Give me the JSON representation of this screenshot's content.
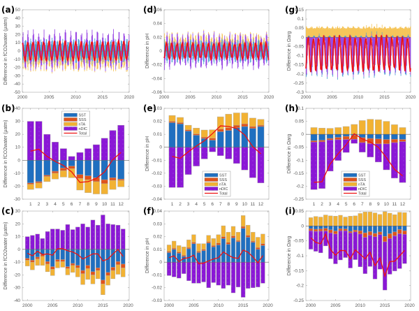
{
  "colors": {
    "SST": "#1f6fc0",
    "SSS": "#e0531a",
    "nTA": "#f2b233",
    "nDIC": "#8a17d6",
    "Total": "#ee1111",
    "SST_ts": "#3a95cf",
    "nTA_ts": "#f5c04a",
    "nDIC_ts": "#8f36e0"
  },
  "legend": [
    "SST",
    "SSS",
    "nTA",
    "nDIC",
    "Total"
  ],
  "chart_data": [
    {
      "id": "a",
      "label": "(a)",
      "type": "area",
      "ylabel": "Difference in fCO2water (μatm)",
      "xlim": [
        2000,
        2020
      ],
      "ylim": [
        -50,
        50
      ],
      "xticks": [
        2000,
        2005,
        2010,
        2015,
        2020
      ],
      "yticks": [
        -50,
        -40,
        -30,
        -20,
        -10,
        0,
        10,
        20,
        30,
        40,
        50
      ],
      "seasonal": {
        "nDIC_amp": 20,
        "SST_amp": -14,
        "nTA_amp": -6,
        "Total_amp": 11,
        "Total_phase_month": 1.5
      }
    },
    {
      "id": "b",
      "label": "(b)",
      "type": "bar",
      "ylabel": "Difference in fCO2water (μatm)",
      "ylim": [
        -30,
        40
      ],
      "categories": [
        "1",
        "2",
        "3",
        "4",
        "5",
        "6",
        "7",
        "8",
        "9",
        "10",
        "11",
        "12"
      ],
      "yticks": [
        -30,
        -20,
        -10,
        0,
        10,
        20,
        30,
        40
      ],
      "legend_position": "top-center",
      "series": [
        {
          "name": "SST",
          "values": [
            -17.5,
            -16.5,
            -11.5,
            -8.5,
            -6,
            -4.5,
            -11,
            -12,
            -13.5,
            -15,
            -13.5,
            -14.5
          ]
        },
        {
          "name": "SSS",
          "values": [
            -1,
            -1,
            -1,
            -1.5,
            -2,
            -2,
            -3,
            -3,
            -3,
            -3,
            -2,
            -1
          ]
        },
        {
          "name": "nTA",
          "values": [
            -4,
            -4,
            -4,
            -4.5,
            -5,
            -7,
            -9,
            -10,
            -9.5,
            -8,
            -7,
            -5
          ]
        },
        {
          "name": "nDIC",
          "values": [
            30,
            30,
            20,
            14,
            9,
            3,
            6,
            9,
            12,
            17,
            23,
            27
          ]
        },
        {
          "name": "Total",
          "values": [
            7,
            8.5,
            3,
            -1,
            -4,
            -9,
            -17,
            -16.5,
            -14,
            -9,
            0.5,
            6
          ]
        }
      ]
    },
    {
      "id": "c",
      "label": "(c)",
      "type": "bar",
      "ylabel": "Difference in fCO2water (μatm)",
      "ylim": [
        -40,
        30
      ],
      "categories": [
        2000,
        2001,
        2002,
        2003,
        2004,
        2005,
        2006,
        2007,
        2008,
        2009,
        2010,
        2011,
        2012,
        2013,
        2014,
        2015,
        2016,
        2017,
        2018,
        2019
      ],
      "xticks": [
        2000,
        2005,
        2010,
        2015,
        2020
      ],
      "yticks": [
        -40,
        -30,
        -20,
        -10,
        0,
        10,
        20,
        30
      ],
      "series": [
        {
          "name": "SST",
          "values": [
            -7,
            -8.5,
            -6,
            -4,
            -9.5,
            -13.5,
            -8,
            -8,
            -13.5,
            -11,
            -12.5,
            -16.5,
            -12.5,
            -17.5,
            -14.5,
            -24,
            -18,
            -14,
            -9.5,
            -11.5
          ]
        },
        {
          "name": "SSS",
          "values": [
            -1.5,
            -1.5,
            -1.5,
            -1.5,
            -2,
            -2,
            -1.5,
            -1.5,
            -1.5,
            -1.5,
            -2,
            -2.5,
            -2.5,
            -2.5,
            -2,
            -3,
            -2.5,
            -2.5,
            -2.5,
            -3
          ]
        },
        {
          "name": "nTA",
          "values": [
            -4.5,
            -6,
            -5,
            -7,
            -6,
            -5,
            -5,
            -4.5,
            -5,
            -5.5,
            -7,
            -8.5,
            -8.5,
            -7,
            -6.5,
            -8.5,
            -7.5,
            -6.5,
            -7.5,
            -7
          ]
        },
        {
          "name": "nDIC",
          "values": [
            10,
            11,
            12,
            8.5,
            14,
            16,
            16,
            15,
            19.5,
            15.5,
            17.5,
            20,
            17.5,
            23,
            19,
            27,
            20,
            19.5,
            19,
            16
          ]
        },
        {
          "name": "Total",
          "values": [
            -3,
            -5,
            -1.5,
            -4,
            -3.5,
            -4.5,
            0.5,
            0.5,
            -1,
            -2,
            -4,
            -7.5,
            -5.5,
            -3.5,
            -3.5,
            -9,
            -7.5,
            -3.5,
            0,
            -5.5
          ]
        }
      ]
    },
    {
      "id": "d",
      "label": "(d)",
      "type": "area",
      "ylabel": "Difference in pH",
      "xlim": [
        2000,
        2020
      ],
      "ylim": [
        -0.06,
        0.06
      ],
      "xticks": [
        2000,
        2005,
        2010,
        2015,
        2020
      ],
      "yticks": [
        -0.06,
        -0.04,
        -0.02,
        0,
        0.02,
        0.04,
        0.06
      ],
      "seasonal": {
        "nDIC_amp": -0.022,
        "SST_amp": 0.016,
        "nTA_amp": 0.006,
        "Total_amp": 0.011,
        "Total_phase_month": 7
      }
    },
    {
      "id": "e",
      "label": "(e)",
      "type": "bar",
      "ylabel": "Difference in pH",
      "ylim": [
        -0.04,
        0.03
      ],
      "categories": [
        "1",
        "2",
        "3",
        "4",
        "5",
        "6",
        "7",
        "8",
        "9",
        "10",
        "11",
        "12"
      ],
      "yticks": [
        -0.04,
        -0.03,
        -0.02,
        -0.01,
        0,
        0.01,
        0.02,
        0.03
      ],
      "legend_position": "bottom-center",
      "series": [
        {
          "name": "SST",
          "values": [
            0.019,
            0.018,
            0.0125,
            0.0093,
            0.0068,
            0.0055,
            0.012,
            0.013,
            0.015,
            0.016,
            0.0145,
            0.016
          ]
        },
        {
          "name": "SSS",
          "values": [
            0.001,
            0.001,
            0.001,
            0.001,
            0.001,
            0.0015,
            0.002,
            0.002,
            0.002,
            0.002,
            0.0015,
            0.001
          ]
        },
        {
          "name": "nTA",
          "values": [
            0.0045,
            0.004,
            0.0035,
            0.0045,
            0.0055,
            0.0065,
            0.0095,
            0.0105,
            0.0095,
            0.0085,
            0.0065,
            0.0045
          ]
        },
        {
          "name": "nDIC",
          "values": [
            -0.031,
            -0.031,
            -0.021,
            -0.0145,
            -0.009,
            -0.0035,
            -0.0065,
            -0.009,
            -0.0125,
            -0.0175,
            -0.0235,
            -0.0275
          ]
        },
        {
          "name": "Total",
          "values": [
            -0.007,
            -0.0085,
            -0.0035,
            0.001,
            0.005,
            0.0105,
            0.0165,
            0.016,
            0.0145,
            0.0095,
            0.0005,
            -0.005
          ]
        }
      ]
    },
    {
      "id": "f",
      "label": "(f)",
      "type": "bar",
      "ylabel": "Difference in pH",
      "ylim": [
        -0.03,
        0.04
      ],
      "categories": [
        2000,
        2001,
        2002,
        2003,
        2004,
        2005,
        2006,
        2007,
        2008,
        2009,
        2010,
        2011,
        2012,
        2013,
        2014,
        2015,
        2016,
        2017,
        2018,
        2019
      ],
      "xticks": [
        2000,
        2005,
        2010,
        2015,
        2020
      ],
      "yticks": [
        -0.03,
        -0.02,
        -0.01,
        0,
        0.01,
        0.02,
        0.03,
        0.04
      ],
      "series": [
        {
          "name": "SST",
          "values": [
            0.0075,
            0.01,
            0.007,
            0.0045,
            0.0105,
            0.0145,
            0.0075,
            0.009,
            0.015,
            0.012,
            0.0135,
            0.0185,
            0.014,
            0.019,
            0.016,
            0.0265,
            0.0195,
            0.0155,
            0.01,
            0.013
          ]
        },
        {
          "name": "SSS",
          "values": [
            0.001,
            0.001,
            0.001,
            0.001,
            0.001,
            0.001,
            0.001,
            0.001,
            0.001,
            0.001,
            0.0015,
            0.0015,
            0.0015,
            0.0015,
            0.001,
            0.0015,
            0.0015,
            0.001,
            0.0015,
            0.0015
          ]
        },
        {
          "name": "nTA",
          "values": [
            0.005,
            0.0055,
            0.005,
            0.0065,
            0.006,
            0.006,
            0.006,
            0.0045,
            0.005,
            0.0055,
            0.0065,
            0.0085,
            0.008,
            0.0075,
            0.0065,
            0.0085,
            0.008,
            0.007,
            0.008,
            0.0075
          ]
        },
        {
          "name": "nDIC",
          "values": [
            -0.0105,
            -0.0115,
            -0.0125,
            -0.009,
            -0.0145,
            -0.0165,
            -0.0165,
            -0.0155,
            -0.02,
            -0.016,
            -0.018,
            -0.0205,
            -0.018,
            -0.024,
            -0.0195,
            -0.0275,
            -0.0205,
            -0.02,
            -0.0195,
            -0.0165
          ]
        },
        {
          "name": "Total",
          "values": [
            0.0035,
            0.005,
            0.0005,
            0.003,
            0.0035,
            0.0055,
            -0.0012,
            -0.0008,
            0.001,
            0.0025,
            0.0035,
            0.008,
            0.0055,
            0.0035,
            0.003,
            0.0095,
            0.0078,
            0.004,
            -0.0005,
            0.0052
          ]
        }
      ]
    },
    {
      "id": "g",
      "label": "(g)",
      "type": "area",
      "ylabel": "Difference in Ωarg",
      "xlim": [
        2000,
        2020
      ],
      "ylim": [
        -0.3,
        0.15
      ],
      "xticks": [
        2000,
        2005,
        2010,
        2015,
        2020
      ],
      "yticks": [
        -0.3,
        -0.25,
        -0.2,
        -0.15,
        -0.1,
        -0.05,
        0,
        0.05,
        0.1,
        0.15
      ],
      "seasonal": {
        "nDIC_amp": -0.09,
        "nDIC_mean": -0.1,
        "SST_amp": -0.01,
        "nTA_amp": 0.02,
        "nTA_mean": 0.035,
        "Total_amp": 0.09,
        "Total_mean": -0.09,
        "Total_phase_month": 6.5
      }
    },
    {
      "id": "h",
      "label": "(h)",
      "type": "bar",
      "ylabel": "Difference in Ωarg",
      "ylim": [
        -0.25,
        0.1
      ],
      "categories": [
        "1",
        "2",
        "3",
        "4",
        "5",
        "6",
        "7",
        "8",
        "9",
        "10",
        "11",
        "12"
      ],
      "yticks": [
        -0.25,
        -0.2,
        -0.15,
        -0.1,
        -0.05,
        0,
        0.05,
        0.1
      ],
      "legend_position": "bottom-center",
      "series": [
        {
          "name": "SST",
          "values": [
            -0.025,
            -0.023,
            -0.016,
            -0.012,
            -0.008,
            -0.004,
            -0.013,
            -0.016,
            -0.018,
            -0.02,
            -0.019,
            -0.02
          ]
        },
        {
          "name": "SSS",
          "values": [
            -0.005,
            -0.006,
            -0.006,
            -0.009,
            -0.012,
            -0.015,
            -0.019,
            -0.02,
            -0.019,
            -0.017,
            -0.013,
            -0.008
          ]
        },
        {
          "name": "nTA",
          "values": [
            0.026,
            0.024,
            0.023,
            0.026,
            0.03,
            0.038,
            0.053,
            0.058,
            0.056,
            0.05,
            0.037,
            0.026
          ]
        },
        {
          "name": "nDIC",
          "values": [
            -0.183,
            -0.18,
            -0.12,
            -0.08,
            -0.05,
            -0.016,
            -0.037,
            -0.052,
            -0.07,
            -0.1,
            -0.137,
            -0.158
          ]
        },
        {
          "name": "Total",
          "values": [
            -0.185,
            -0.183,
            -0.115,
            -0.075,
            -0.04,
            0.002,
            -0.018,
            -0.03,
            -0.05,
            -0.09,
            -0.135,
            -0.16
          ]
        }
      ]
    },
    {
      "id": "i",
      "label": "(i)",
      "type": "bar",
      "ylabel": "Difference in Ωarg",
      "ylim": [
        -0.25,
        0.05
      ],
      "categories": [
        2000,
        2001,
        2002,
        2003,
        2004,
        2005,
        2006,
        2007,
        2008,
        2009,
        2010,
        2011,
        2012,
        2013,
        2014,
        2015,
        2016,
        2017,
        2018,
        2019
      ],
      "xticks": [
        2000,
        2005,
        2010,
        2015,
        2020
      ],
      "yticks": [
        -0.25,
        -0.2,
        -0.15,
        -0.1,
        -0.05,
        0,
        0.05
      ],
      "series": [
        {
          "name": "SST",
          "values": [
            -0.009,
            -0.011,
            -0.01,
            -0.008,
            -0.013,
            -0.017,
            -0.009,
            -0.01,
            -0.018,
            -0.014,
            -0.016,
            -0.023,
            -0.019,
            -0.025,
            -0.02,
            -0.035,
            -0.026,
            -0.02,
            -0.012,
            -0.016
          ]
        },
        {
          "name": "SSS",
          "values": [
            -0.007,
            -0.007,
            -0.007,
            -0.009,
            -0.01,
            -0.01,
            -0.007,
            -0.006,
            -0.005,
            -0.006,
            -0.011,
            -0.015,
            -0.012,
            -0.011,
            -0.009,
            -0.018,
            -0.016,
            -0.013,
            -0.014,
            -0.012
          ]
        },
        {
          "name": "nTA",
          "values": [
            0.028,
            0.032,
            0.03,
            0.037,
            0.034,
            0.033,
            0.036,
            0.03,
            0.033,
            0.034,
            0.042,
            0.047,
            0.047,
            0.044,
            0.039,
            0.048,
            0.043,
            0.038,
            0.046,
            0.045
          ]
        },
        {
          "name": "nDIC",
          "values": [
            -0.062,
            -0.067,
            -0.073,
            -0.05,
            -0.087,
            -0.1,
            -0.098,
            -0.09,
            -0.118,
            -0.093,
            -0.11,
            -0.122,
            -0.105,
            -0.142,
            -0.116,
            -0.162,
            -0.12,
            -0.118,
            -0.117,
            -0.098
          ]
        },
        {
          "name": "Total",
          "values": [
            -0.04,
            -0.055,
            -0.06,
            -0.027,
            -0.08,
            -0.098,
            -0.082,
            -0.083,
            -0.11,
            -0.08,
            -0.095,
            -0.11,
            -0.088,
            -0.133,
            -0.107,
            -0.168,
            -0.12,
            -0.118,
            -0.1,
            -0.082
          ]
        }
      ]
    }
  ]
}
